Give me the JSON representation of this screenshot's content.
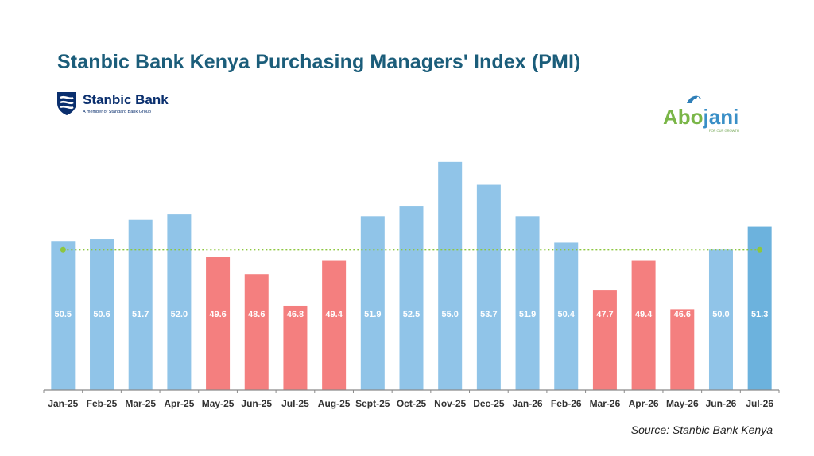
{
  "title": "Stanbic Bank Kenya Purchasing Managers' Index (PMI)",
  "logos": {
    "left": {
      "name": "Stanbic Bank",
      "tagline": "A member of Standard Bank Group"
    },
    "right": {
      "name_main": "Abo",
      "name_accent": "jani",
      "tagline": "FOR OUR GROWTH"
    }
  },
  "source": "Source: Stanbic Bank Kenya",
  "colors": {
    "expansion": "#90c4e8",
    "contraction": "#f47f7f",
    "highlight": "#6cb2dd",
    "reference_line": "#8dc63f",
    "axis": "#8a8a8a",
    "title": "#1b5d7a"
  },
  "chart_data": {
    "type": "bar",
    "title": "Stanbic Bank Kenya Purchasing Managers' Index (PMI)",
    "categories": [
      "Jan-25",
      "Feb-25",
      "Mar-25",
      "Apr-25",
      "May-25",
      "Jun-25",
      "Jul-25",
      "Aug-25",
      "Sept-25",
      "Oct-25",
      "Nov-25",
      "Dec-25",
      "Jan-26",
      "Feb-26",
      "Mar-26",
      "Apr-26",
      "May-26",
      "Jun-26",
      "Jul-26"
    ],
    "values": [
      50.5,
      50.6,
      51.7,
      52.0,
      49.6,
      48.6,
      46.8,
      49.4,
      51.9,
      52.5,
      55.0,
      53.7,
      51.9,
      50.4,
      47.7,
      49.4,
      46.6,
      50.0,
      51.3
    ],
    "value_labels": [
      "50.5",
      "50.6",
      "51.7",
      "52.0",
      "49.6",
      "48.6",
      "46.8",
      "49.4",
      "51.9",
      "52.5",
      "55.0",
      "53.7",
      "51.9",
      "50.4",
      "47.7",
      "49.4",
      "46.6",
      "50.0",
      "51.3"
    ],
    "reference_line": 50,
    "highlight_index": 18,
    "ylim": [
      42,
      55.4
    ],
    "xlabel": "",
    "ylabel": "",
    "grid": false,
    "legend": "none"
  }
}
